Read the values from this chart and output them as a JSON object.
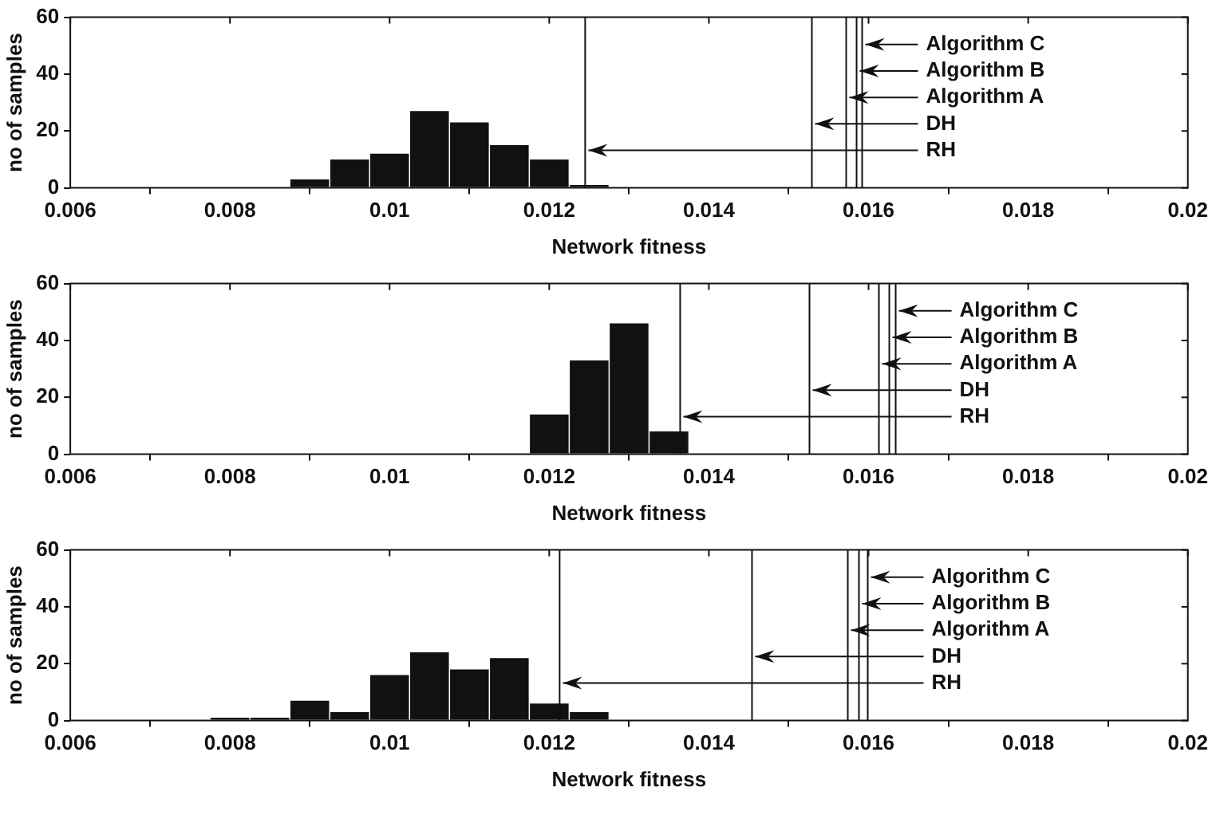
{
  "chart_data": [
    {
      "type": "histogram",
      "xlabel": "Network fitness",
      "ylabel": "no of samples",
      "bins": [
        0.00875,
        0.00925,
        0.00975,
        0.01025,
        0.01075,
        0.01125,
        0.01175,
        0.01225,
        0.01275
      ],
      "values": [
        3,
        10,
        12,
        27,
        23,
        15,
        10,
        1
      ],
      "color": "#111111",
      "xlim": [
        0.006,
        0.02
      ],
      "xticks": [
        0.006,
        0.008,
        0.01,
        0.012,
        0.014,
        0.016,
        0.018,
        0.02
      ],
      "ylim": [
        0,
        60
      ],
      "yticks": [
        0,
        20,
        40,
        60
      ],
      "grid": false,
      "legend": false,
      "ref_lines": [
        {
          "axis": "x",
          "value": 0.01245,
          "label": "RH",
          "color": "#111111"
        },
        {
          "axis": "x",
          "value": 0.01529,
          "label": "DH",
          "color": "#111111"
        },
        {
          "axis": "x",
          "value": 0.01572,
          "label": "Algorithm A",
          "color": "#111111"
        },
        {
          "axis": "x",
          "value": 0.01585,
          "label": "Algorithm B",
          "color": "#111111"
        },
        {
          "axis": "x",
          "value": 0.01592,
          "label": "Algorithm C",
          "color": "#111111"
        }
      ]
    },
    {
      "type": "histogram",
      "xlabel": "Network fitness",
      "ylabel": "no of samples",
      "bins": [
        0.01175,
        0.01225,
        0.01275,
        0.01325,
        0.01375
      ],
      "values": [
        14,
        33,
        46,
        8
      ],
      "color": "#111111",
      "xlim": [
        0.006,
        0.02
      ],
      "xticks": [
        0.006,
        0.008,
        0.01,
        0.012,
        0.014,
        0.016,
        0.018,
        0.02
      ],
      "ylim": [
        0,
        60
      ],
      "yticks": [
        0,
        20,
        40,
        60
      ],
      "grid": false,
      "legend": false,
      "ref_lines": [
        {
          "axis": "x",
          "value": 0.01364,
          "label": "RH",
          "color": "#111111"
        },
        {
          "axis": "x",
          "value": 0.01526,
          "label": "DH",
          "color": "#111111"
        },
        {
          "axis": "x",
          "value": 0.01613,
          "label": "Algorithm A",
          "color": "#111111"
        },
        {
          "axis": "x",
          "value": 0.01626,
          "label": "Algorithm B",
          "color": "#111111"
        },
        {
          "axis": "x",
          "value": 0.01634,
          "label": "Algorithm C",
          "color": "#111111"
        }
      ]
    },
    {
      "type": "histogram",
      "xlabel": "Network fitness",
      "ylabel": "no of samples",
      "bins": [
        0.00775,
        0.00825,
        0.00875,
        0.00925,
        0.00975,
        0.01025,
        0.01075,
        0.01125,
        0.01175,
        0.01225,
        0.01275
      ],
      "values": [
        1,
        1,
        7,
        3,
        16,
        24,
        18,
        22,
        6,
        3
      ],
      "color": "#111111",
      "xlim": [
        0.006,
        0.02
      ],
      "xticks": [
        0.006,
        0.008,
        0.01,
        0.012,
        0.014,
        0.016,
        0.018,
        0.02
      ],
      "ylim": [
        0,
        60
      ],
      "yticks": [
        0,
        20,
        40,
        60
      ],
      "grid": false,
      "legend": false,
      "ref_lines": [
        {
          "axis": "x",
          "value": 0.01213,
          "label": "RH",
          "color": "#111111"
        },
        {
          "axis": "x",
          "value": 0.01454,
          "label": "DH",
          "color": "#111111"
        },
        {
          "axis": "x",
          "value": 0.01574,
          "label": "Algorithm A",
          "color": "#111111"
        },
        {
          "axis": "x",
          "value": 0.01588,
          "label": "Algorithm B",
          "color": "#111111"
        },
        {
          "axis": "x",
          "value": 0.01599,
          "label": "Algorithm C",
          "color": "#111111"
        }
      ]
    }
  ]
}
